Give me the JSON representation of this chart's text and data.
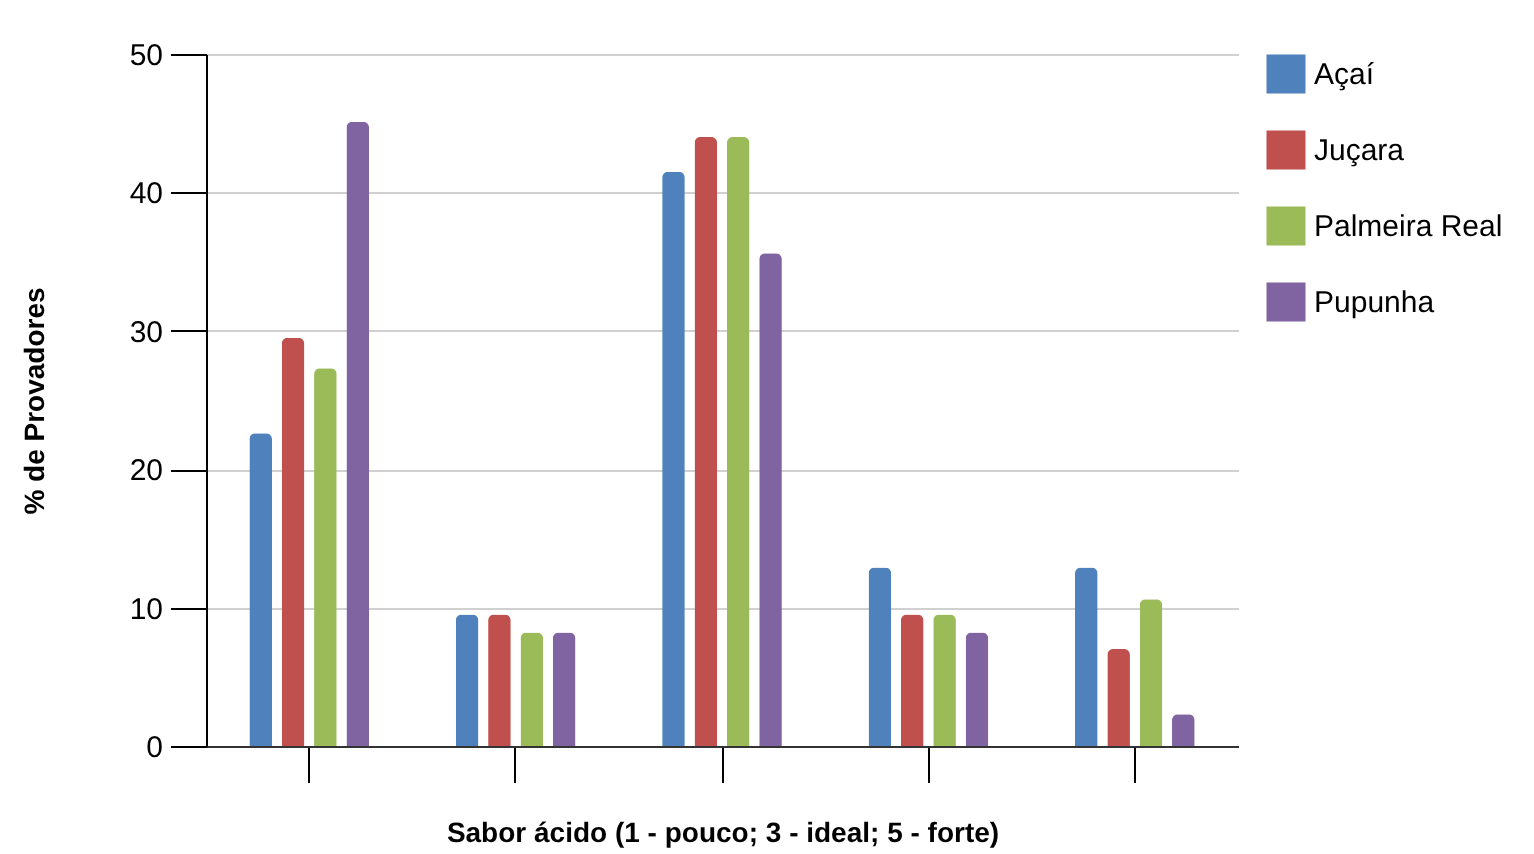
{
  "chart_data": {
    "type": "bar",
    "xlabel": "Sabor ácido (1 - pouco; 3 - ideal; 5 - forte)",
    "ylabel": "% de Provadores",
    "categories": [
      null,
      null,
      null,
      null,
      null
    ],
    "series": [
      {
        "name": "Açaí",
        "color": "#4f81bd",
        "values": [
          22.6,
          9.5,
          41.5,
          12.9,
          12.9
        ]
      },
      {
        "name": "Juçara",
        "color": "#c0504d",
        "values": [
          29.5,
          9.5,
          44.0,
          9.5,
          7.0
        ]
      },
      {
        "name": "Palmeira Real",
        "color": "#9bbb59",
        "values": [
          27.3,
          8.2,
          44.0,
          9.5,
          10.6
        ]
      },
      {
        "name": "Pupunha",
        "color": "#8064a2",
        "values": [
          45.1,
          8.2,
          35.6,
          8.2,
          2.3
        ]
      }
    ],
    "ylim": [
      0,
      50
    ],
    "yticks": [
      0,
      10,
      20,
      30,
      40,
      50
    ],
    "grid": "y",
    "legend": "top right",
    "tick_labels": "y"
  }
}
